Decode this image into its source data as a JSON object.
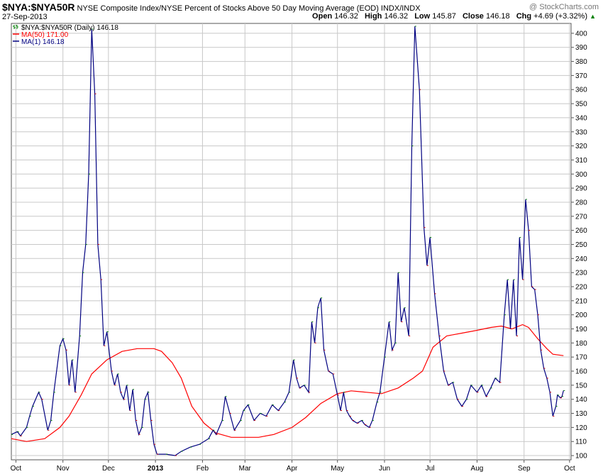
{
  "header": {
    "symbol": "$NYA:$NYA50R",
    "description": "NYSE Composite Index/NYSE Percent of Stocks Above 50 Day Moving Average (EOD) INDX/INDX",
    "watermark": "@ StockCharts.com",
    "date": "27-Sep-2013",
    "open_label": "Open",
    "open": "146.32",
    "high_label": "High",
    "high": "146.32",
    "low_label": "Low",
    "low": "145.87",
    "close_label": "Close",
    "close": "146.18",
    "chg_label": "Chg",
    "chg": "+4.69 (+3.32%)",
    "chg_arrow": "▲"
  },
  "legend": [
    {
      "label": "$NYA:$NYA50R (Daily) 146.18",
      "color": "#000000"
    },
    {
      "label": "MA(50) 171.00",
      "color": "#ff0000"
    },
    {
      "label": "MA(1) 146.18",
      "color": "#000080"
    }
  ],
  "colors": {
    "price": "#000080",
    "ma50": "#ff0000",
    "grid": "#c8c8c8",
    "up": "#008000",
    "down": "#cc0000"
  },
  "chart_data": {
    "type": "line",
    "title": "$NYA:$NYA50R",
    "ylim": [
      97,
      407
    ],
    "y_ticks": [
      100,
      110,
      120,
      130,
      140,
      150,
      160,
      170,
      180,
      190,
      200,
      210,
      220,
      230,
      240,
      250,
      260,
      270,
      280,
      290,
      300,
      310,
      320,
      330,
      340,
      350,
      360,
      370,
      380,
      390,
      400
    ],
    "x_start": "2012-09-28",
    "x_end": "2013-10-02",
    "x_ticks": [
      {
        "label": "Oct",
        "date": "2012-10-01"
      },
      {
        "label": "Nov",
        "date": "2012-11-01"
      },
      {
        "label": "Dec",
        "date": "2012-12-01"
      },
      {
        "label": "2013",
        "date": "2013-01-01",
        "bold": true
      },
      {
        "label": "Feb",
        "date": "2013-02-01"
      },
      {
        "label": "Mar",
        "date": "2013-03-01"
      },
      {
        "label": "Apr",
        "date": "2013-04-01"
      },
      {
        "label": "May",
        "date": "2013-05-01"
      },
      {
        "label": "Jun",
        "date": "2013-06-01"
      },
      {
        "label": "Jul",
        "date": "2013-07-01"
      },
      {
        "label": "Aug",
        "date": "2013-08-01"
      },
      {
        "label": "Sep",
        "date": "2013-09-01"
      },
      {
        "label": "Oct",
        "date": "2013-10-01"
      }
    ],
    "series": [
      {
        "name": "$NYA:$NYA50R (Daily)",
        "values": [
          [
            "2012-09-28",
            115
          ],
          [
            "2012-10-02",
            117
          ],
          [
            "2012-10-04",
            114
          ],
          [
            "2012-10-08",
            120
          ],
          [
            "2012-10-10",
            128
          ],
          [
            "2012-10-12",
            135
          ],
          [
            "2012-10-16",
            145
          ],
          [
            "2012-10-18",
            140
          ],
          [
            "2012-10-22",
            118
          ],
          [
            "2012-10-24",
            125
          ],
          [
            "2012-10-26",
            145
          ],
          [
            "2012-10-30",
            178
          ],
          [
            "2012-11-01",
            183
          ],
          [
            "2012-11-03",
            175
          ],
          [
            "2012-11-05",
            150
          ],
          [
            "2012-11-07",
            168
          ],
          [
            "2012-11-09",
            145
          ],
          [
            "2012-11-12",
            185
          ],
          [
            "2012-11-14",
            230
          ],
          [
            "2012-11-16",
            250
          ],
          [
            "2012-11-18",
            300
          ],
          [
            "2012-11-20",
            403
          ],
          [
            "2012-11-22",
            357
          ],
          [
            "2012-11-24",
            250
          ],
          [
            "2012-11-26",
            225
          ],
          [
            "2012-11-28",
            178
          ],
          [
            "2012-11-30",
            188
          ],
          [
            "2012-12-03",
            160
          ],
          [
            "2012-12-05",
            150
          ],
          [
            "2012-12-07",
            158
          ],
          [
            "2012-12-09",
            145
          ],
          [
            "2012-12-11",
            140
          ],
          [
            "2012-12-13",
            150
          ],
          [
            "2012-12-15",
            132
          ],
          [
            "2012-12-17",
            147
          ],
          [
            "2012-12-19",
            125
          ],
          [
            "2012-12-21",
            115
          ],
          [
            "2012-12-23",
            120
          ],
          [
            "2012-12-25",
            140
          ],
          [
            "2012-12-27",
            145
          ],
          [
            "2012-12-29",
            125
          ],
          [
            "2012-12-31",
            108
          ],
          [
            "2013-01-02",
            101
          ],
          [
            "2013-01-08",
            101
          ],
          [
            "2013-01-14",
            100
          ],
          [
            "2013-01-18",
            103
          ],
          [
            "2013-01-24",
            106
          ],
          [
            "2013-01-30",
            108
          ],
          [
            "2013-02-05",
            112
          ],
          [
            "2013-02-08",
            118
          ],
          [
            "2013-02-10",
            115
          ],
          [
            "2013-02-14",
            125
          ],
          [
            "2013-02-16",
            142
          ],
          [
            "2013-02-19",
            130
          ],
          [
            "2013-02-22",
            118
          ],
          [
            "2013-02-26",
            125
          ],
          [
            "2013-02-28",
            132
          ],
          [
            "2013-03-03",
            136
          ],
          [
            "2013-03-07",
            125
          ],
          [
            "2013-03-11",
            130
          ],
          [
            "2013-03-15",
            128
          ],
          [
            "2013-03-19",
            136
          ],
          [
            "2013-03-23",
            132
          ],
          [
            "2013-03-27",
            138
          ],
          [
            "2013-03-30",
            145
          ],
          [
            "2013-04-02",
            168
          ],
          [
            "2013-04-04",
            155
          ],
          [
            "2013-04-06",
            148
          ],
          [
            "2013-04-09",
            150
          ],
          [
            "2013-04-12",
            145
          ],
          [
            "2013-04-14",
            195
          ],
          [
            "2013-04-16",
            180
          ],
          [
            "2013-04-18",
            205
          ],
          [
            "2013-04-20",
            212
          ],
          [
            "2013-04-22",
            175
          ],
          [
            "2013-04-25",
            160
          ],
          [
            "2013-04-28",
            158
          ],
          [
            "2013-05-01",
            143
          ],
          [
            "2013-05-03",
            132
          ],
          [
            "2013-05-05",
            145
          ],
          [
            "2013-05-07",
            132
          ],
          [
            "2013-05-09",
            128
          ],
          [
            "2013-05-11",
            125
          ],
          [
            "2013-05-14",
            123
          ],
          [
            "2013-05-17",
            125
          ],
          [
            "2013-05-19",
            122
          ],
          [
            "2013-05-22",
            120
          ],
          [
            "2013-05-24",
            125
          ],
          [
            "2013-05-27",
            138
          ],
          [
            "2013-05-29",
            145
          ],
          [
            "2013-06-01",
            170
          ],
          [
            "2013-06-04",
            195
          ],
          [
            "2013-06-06",
            175
          ],
          [
            "2013-06-08",
            180
          ],
          [
            "2013-06-10",
            230
          ],
          [
            "2013-06-12",
            195
          ],
          [
            "2013-06-14",
            205
          ],
          [
            "2013-06-17",
            185
          ],
          [
            "2013-06-19",
            320
          ],
          [
            "2013-06-21",
            405
          ],
          [
            "2013-06-24",
            360
          ],
          [
            "2013-06-27",
            262
          ],
          [
            "2013-06-29",
            235
          ],
          [
            "2013-07-01",
            255
          ],
          [
            "2013-07-04",
            215
          ],
          [
            "2013-07-07",
            185
          ],
          [
            "2013-07-10",
            160
          ],
          [
            "2013-07-13",
            150
          ],
          [
            "2013-07-16",
            152
          ],
          [
            "2013-07-19",
            140
          ],
          [
            "2013-07-22",
            135
          ],
          [
            "2013-07-25",
            140
          ],
          [
            "2013-07-28",
            150
          ],
          [
            "2013-08-01",
            145
          ],
          [
            "2013-08-04",
            150
          ],
          [
            "2013-08-07",
            142
          ],
          [
            "2013-08-10",
            148
          ],
          [
            "2013-08-13",
            155
          ],
          [
            "2013-08-16",
            152
          ],
          [
            "2013-08-19",
            200
          ],
          [
            "2013-08-21",
            225
          ],
          [
            "2013-08-23",
            190
          ],
          [
            "2013-08-25",
            225
          ],
          [
            "2013-08-27",
            185
          ],
          [
            "2013-08-29",
            255
          ],
          [
            "2013-08-31",
            225
          ],
          [
            "2013-09-02",
            282
          ],
          [
            "2013-09-04",
            260
          ],
          [
            "2013-09-06",
            220
          ],
          [
            "2013-09-08",
            218
          ],
          [
            "2013-09-10",
            200
          ],
          [
            "2013-09-12",
            175
          ],
          [
            "2013-09-14",
            162
          ],
          [
            "2013-09-16",
            155
          ],
          [
            "2013-09-18",
            145
          ],
          [
            "2013-09-20",
            128
          ],
          [
            "2013-09-22",
            135
          ],
          [
            "2013-09-23",
            143
          ],
          [
            "2013-09-25",
            141
          ],
          [
            "2013-09-26",
            142
          ],
          [
            "2013-09-27",
            146.18
          ]
        ]
      },
      {
        "name": "MA(50)",
        "values": [
          [
            "2012-09-28",
            112
          ],
          [
            "2012-10-08",
            110
          ],
          [
            "2012-10-20",
            112
          ],
          [
            "2012-10-30",
            120
          ],
          [
            "2012-11-05",
            128
          ],
          [
            "2012-11-13",
            143
          ],
          [
            "2012-11-20",
            158
          ],
          [
            "2012-11-30",
            168
          ],
          [
            "2012-12-10",
            174
          ],
          [
            "2012-12-20",
            176
          ],
          [
            "2012-12-31",
            176
          ],
          [
            "2013-01-05",
            174
          ],
          [
            "2013-01-12",
            166
          ],
          [
            "2013-01-18",
            155
          ],
          [
            "2013-01-25",
            135
          ],
          [
            "2013-02-02",
            123
          ],
          [
            "2013-02-10",
            116
          ],
          [
            "2013-02-20",
            113
          ],
          [
            "2013-03-01",
            113
          ],
          [
            "2013-03-10",
            113
          ],
          [
            "2013-03-20",
            115
          ],
          [
            "2013-04-01",
            120
          ],
          [
            "2013-04-10",
            127
          ],
          [
            "2013-04-20",
            137
          ],
          [
            "2013-05-01",
            144
          ],
          [
            "2013-05-10",
            146
          ],
          [
            "2013-05-20",
            145
          ],
          [
            "2013-05-30",
            144
          ],
          [
            "2013-06-10",
            148
          ],
          [
            "2013-06-20",
            155
          ],
          [
            "2013-06-26",
            160
          ],
          [
            "2013-07-03",
            177
          ],
          [
            "2013-07-12",
            185
          ],
          [
            "2013-07-22",
            187
          ],
          [
            "2013-08-01",
            189
          ],
          [
            "2013-08-10",
            191
          ],
          [
            "2013-08-17",
            192
          ],
          [
            "2013-08-24",
            190
          ],
          [
            "2013-08-31",
            193
          ],
          [
            "2013-09-04",
            191
          ],
          [
            "2013-09-10",
            183
          ],
          [
            "2013-09-16",
            176
          ],
          [
            "2013-09-20",
            172
          ],
          [
            "2013-09-27",
            171
          ]
        ]
      }
    ],
    "annotations": [
      "MA(50) 171.00",
      "MA(1) 146.18"
    ]
  }
}
